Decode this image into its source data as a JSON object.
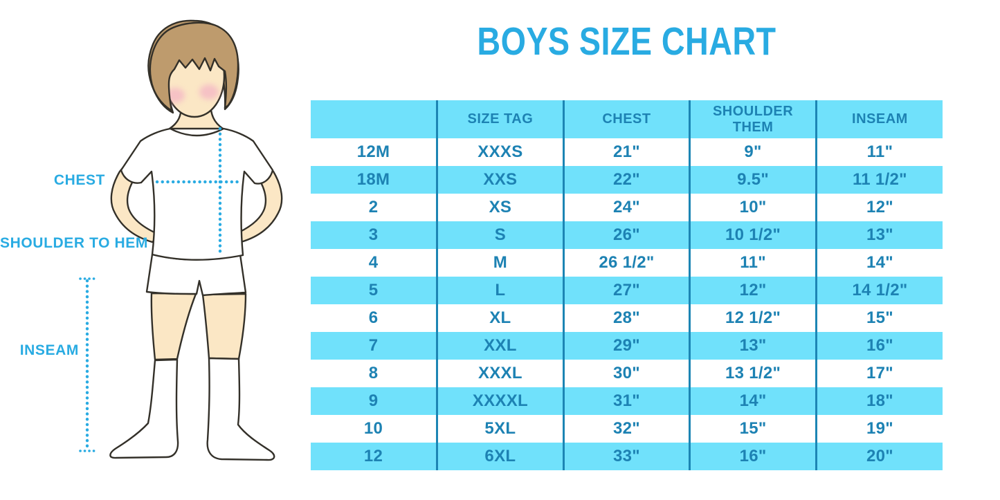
{
  "title": "BOYS SIZE CHART",
  "figure": {
    "labels": {
      "chest": "CHEST",
      "shoulder_to_hem": "SHOULDER TO HEM",
      "inseam": "INSEAM"
    }
  },
  "chart_data": {
    "type": "table",
    "title": "BOYS SIZE CHART",
    "columns": [
      "",
      "SIZE TAG",
      "CHEST",
      "SHOULDER THEM",
      "INSEAM"
    ],
    "rows": [
      [
        "12M",
        "XXXS",
        "21\"",
        "9\"",
        "11\""
      ],
      [
        "18M",
        "XXS",
        "22\"",
        "9.5\"",
        "11 1/2\""
      ],
      [
        "2",
        "XS",
        "24\"",
        "10\"",
        "12\""
      ],
      [
        "3",
        "S",
        "26\"",
        "10 1/2\"",
        "13\""
      ],
      [
        "4",
        "M",
        "26 1/2\"",
        "11\"",
        "14\""
      ],
      [
        "5",
        "L",
        "27\"",
        "12\"",
        "14 1/2\""
      ],
      [
        "6",
        "XL",
        "28\"",
        "12 1/2\"",
        "15\""
      ],
      [
        "7",
        "XXL",
        "29\"",
        "13\"",
        "16\""
      ],
      [
        "8",
        "XXXL",
        "30\"",
        "13 1/2\"",
        "17\""
      ],
      [
        "9",
        "XXXXL",
        "31\"",
        "14\"",
        "18\""
      ],
      [
        "10",
        "5XL",
        "32\"",
        "15\"",
        "19\""
      ],
      [
        "12",
        "6XL",
        "33\"",
        "16\"",
        "20\""
      ]
    ],
    "layout": {
      "header_fill": "#70E1FB",
      "alt_row_fill": "#70E1FB",
      "plain_row_fill": "#FFFFFF",
      "column_line_color": "#1C85B4",
      "text_color": "#1D82B3",
      "grid": "vertical-lines-only",
      "zebra_striping": true
    }
  },
  "colors": {
    "accent_blue": "#29ABE2",
    "table_text_blue": "#1D82B3",
    "row_fill_cyan": "#70E1FB",
    "column_line_blue": "#1C85B4",
    "hair_brown": "#BE9B6D",
    "skin": "#FBE7C5",
    "cheek_pink": "#F2A8C5",
    "outline_dark": "#333029"
  }
}
